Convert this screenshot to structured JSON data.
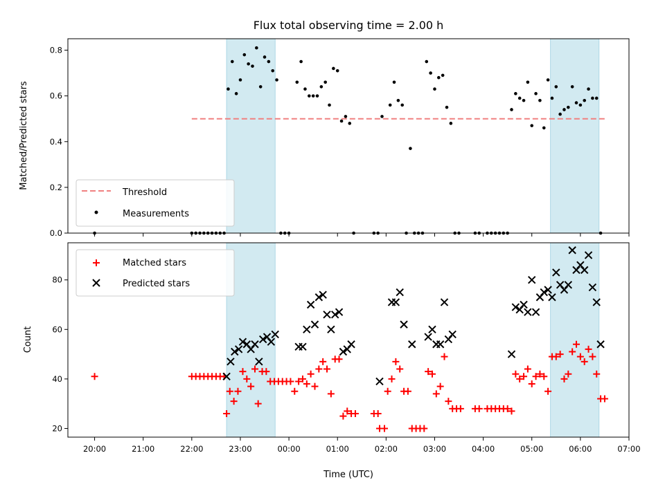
{
  "chart_data": [
    {
      "type": "scatter",
      "title": "Flux total observing time = 2.00 h",
      "ylabel": "Matched/Predicted stars",
      "xlabel": "",
      "xlim": [
        "19:27",
        "07:00"
      ],
      "ylim": [
        0,
        0.85
      ],
      "yticks": [
        "0.0",
        "0.2",
        "0.4",
        "0.6",
        "0.8"
      ],
      "grid": false,
      "legend_position": "lower-left",
      "shaded_intervals": [
        {
          "start": "22:43",
          "end": "23:43"
        },
        {
          "start": "05:23",
          "end": "06:23"
        }
      ],
      "colors": {
        "threshold": "#f08080",
        "measurements": "#000000",
        "shade": "#add8e6"
      },
      "threshold": {
        "name": "Threshold",
        "y": 0.5,
        "x_range": [
          "22:00",
          "06:30"
        ]
      },
      "series": [
        {
          "name": "Measurements",
          "points": [
            [
              "20:00",
              0.0
            ],
            [
              "22:00",
              0.0
            ],
            [
              "22:05",
              0.0
            ],
            [
              "22:10",
              0.0
            ],
            [
              "22:15",
              0.0
            ],
            [
              "22:20",
              0.0
            ],
            [
              "22:25",
              0.0
            ],
            [
              "22:30",
              0.0
            ],
            [
              "22:35",
              0.0
            ],
            [
              "22:40",
              0.0
            ],
            [
              "22:45",
              0.63
            ],
            [
              "22:50",
              0.75
            ],
            [
              "22:55",
              0.61
            ],
            [
              "23:00",
              0.67
            ],
            [
              "23:05",
              0.78
            ],
            [
              "23:10",
              0.74
            ],
            [
              "23:15",
              0.73
            ],
            [
              "23:20",
              0.81
            ],
            [
              "23:25",
              0.64
            ],
            [
              "23:30",
              0.77
            ],
            [
              "23:35",
              0.75
            ],
            [
              "23:40",
              0.71
            ],
            [
              "23:45",
              0.67
            ],
            [
              "23:50",
              0.0
            ],
            [
              "23:55",
              0.0
            ],
            [
              "00:00",
              0.0
            ],
            [
              "00:10",
              0.66
            ],
            [
              "00:15",
              0.75
            ],
            [
              "00:20",
              0.63
            ],
            [
              "00:25",
              0.6
            ],
            [
              "00:30",
              0.6
            ],
            [
              "00:35",
              0.6
            ],
            [
              "00:40",
              0.64
            ],
            [
              "00:45",
              0.66
            ],
            [
              "00:50",
              0.56
            ],
            [
              "00:55",
              0.72
            ],
            [
              "01:00",
              0.71
            ],
            [
              "01:05",
              0.49
            ],
            [
              "01:10",
              0.51
            ],
            [
              "01:15",
              0.48
            ],
            [
              "01:20",
              0.0
            ],
            [
              "01:45",
              0.0
            ],
            [
              "01:50",
              0.0
            ],
            [
              "01:55",
              0.51
            ],
            [
              "02:05",
              0.56
            ],
            [
              "02:10",
              0.66
            ],
            [
              "02:15",
              0.58
            ],
            [
              "02:20",
              0.56
            ],
            [
              "02:25",
              0.0
            ],
            [
              "02:30",
              0.37
            ],
            [
              "02:35",
              0.0
            ],
            [
              "02:40",
              0.0
            ],
            [
              "02:45",
              0.0
            ],
            [
              "02:50",
              0.75
            ],
            [
              "02:55",
              0.7
            ],
            [
              "03:00",
              0.63
            ],
            [
              "03:05",
              0.68
            ],
            [
              "03:10",
              0.69
            ],
            [
              "03:15",
              0.55
            ],
            [
              "03:20",
              0.48
            ],
            [
              "03:25",
              0.0
            ],
            [
              "03:30",
              0.0
            ],
            [
              "03:50",
              0.0
            ],
            [
              "03:55",
              0.0
            ],
            [
              "04:05",
              0.0
            ],
            [
              "04:10",
              0.0
            ],
            [
              "04:15",
              0.0
            ],
            [
              "04:20",
              0.0
            ],
            [
              "04:25",
              0.0
            ],
            [
              "04:30",
              0.0
            ],
            [
              "04:35",
              0.54
            ],
            [
              "04:40",
              0.61
            ],
            [
              "04:45",
              0.59
            ],
            [
              "04:50",
              0.58
            ],
            [
              "04:55",
              0.66
            ],
            [
              "05:00",
              0.47
            ],
            [
              "05:05",
              0.61
            ],
            [
              "05:10",
              0.58
            ],
            [
              "05:15",
              0.46
            ],
            [
              "05:20",
              0.67
            ],
            [
              "05:25",
              0.59
            ],
            [
              "05:30",
              0.64
            ],
            [
              "05:35",
              0.52
            ],
            [
              "05:40",
              0.54
            ],
            [
              "05:45",
              0.55
            ],
            [
              "05:50",
              0.64
            ],
            [
              "05:55",
              0.57
            ],
            [
              "06:00",
              0.56
            ],
            [
              "06:05",
              0.58
            ],
            [
              "06:10",
              0.63
            ],
            [
              "06:15",
              0.59
            ],
            [
              "06:20",
              0.59
            ],
            [
              "06:25",
              0.0
            ]
          ]
        }
      ]
    },
    {
      "type": "scatter",
      "title": "",
      "ylabel": "Count",
      "xlabel": "Time (UTC)",
      "xlim": [
        "19:27",
        "07:00"
      ],
      "ylim": [
        16.5,
        95
      ],
      "yticks": [
        "20",
        "40",
        "60",
        "80"
      ],
      "xticks": [
        "20:00",
        "21:00",
        "22:00",
        "23:00",
        "00:00",
        "01:00",
        "02:00",
        "03:00",
        "04:00",
        "05:00",
        "06:00",
        "07:00"
      ],
      "grid": false,
      "legend_position": "top-left",
      "shaded_intervals": [
        {
          "start": "22:43",
          "end": "23:43"
        },
        {
          "start": "05:23",
          "end": "06:23"
        }
      ],
      "colors": {
        "matched": "#ff0000",
        "predicted": "#000000",
        "shade": "#add8e6"
      },
      "series": [
        {
          "name": "Matched stars",
          "marker": "+",
          "points": [
            [
              "20:00",
              41
            ],
            [
              "22:00",
              41
            ],
            [
              "22:05",
              41
            ],
            [
              "22:10",
              41
            ],
            [
              "22:15",
              41
            ],
            [
              "22:20",
              41
            ],
            [
              "22:25",
              41
            ],
            [
              "22:30",
              41
            ],
            [
              "22:35",
              41
            ],
            [
              "22:40",
              41
            ],
            [
              "22:43",
              26
            ],
            [
              "22:47",
              35
            ],
            [
              "22:52",
              31
            ],
            [
              "22:57",
              35
            ],
            [
              "23:03",
              43
            ],
            [
              "23:08",
              40
            ],
            [
              "23:13",
              37
            ],
            [
              "23:18",
              44
            ],
            [
              "23:22",
              30
            ],
            [
              "23:27",
              43
            ],
            [
              "23:32",
              43
            ],
            [
              "23:37",
              39
            ],
            [
              "23:42",
              39
            ],
            [
              "23:47",
              39
            ],
            [
              "23:52",
              39
            ],
            [
              "23:57",
              39
            ],
            [
              "00:02",
              39
            ],
            [
              "00:07",
              35
            ],
            [
              "00:12",
              39
            ],
            [
              "00:17",
              40
            ],
            [
              "00:22",
              38
            ],
            [
              "00:27",
              42
            ],
            [
              "00:32",
              37
            ],
            [
              "00:37",
              44
            ],
            [
              "00:42",
              47
            ],
            [
              "00:47",
              44
            ],
            [
              "00:52",
              34
            ],
            [
              "00:57",
              48
            ],
            [
              "01:02",
              48
            ],
            [
              "01:07",
              25
            ],
            [
              "01:12",
              27
            ],
            [
              "01:17",
              26
            ],
            [
              "01:22",
              26
            ],
            [
              "01:45",
              26
            ],
            [
              "01:50",
              26
            ],
            [
              "01:52",
              20
            ],
            [
              "01:58",
              20
            ],
            [
              "02:02",
              35
            ],
            [
              "02:07",
              40
            ],
            [
              "02:12",
              47
            ],
            [
              "02:17",
              44
            ],
            [
              "02:22",
              35
            ],
            [
              "02:27",
              35
            ],
            [
              "02:32",
              20
            ],
            [
              "02:37",
              20
            ],
            [
              "02:42",
              20
            ],
            [
              "02:47",
              20
            ],
            [
              "02:52",
              43
            ],
            [
              "02:57",
              42
            ],
            [
              "03:02",
              34
            ],
            [
              "03:07",
              37
            ],
            [
              "03:12",
              49
            ],
            [
              "03:17",
              31
            ],
            [
              "03:22",
              28
            ],
            [
              "03:27",
              28
            ],
            [
              "03:32",
              28
            ],
            [
              "03:50",
              28
            ],
            [
              "03:55",
              28
            ],
            [
              "04:05",
              28
            ],
            [
              "04:10",
              28
            ],
            [
              "04:15",
              28
            ],
            [
              "04:20",
              28
            ],
            [
              "04:25",
              28
            ],
            [
              "04:30",
              28
            ],
            [
              "04:35",
              27
            ],
            [
              "04:40",
              42
            ],
            [
              "04:45",
              40
            ],
            [
              "04:50",
              41
            ],
            [
              "04:55",
              44
            ],
            [
              "05:00",
              38
            ],
            [
              "05:05",
              41
            ],
            [
              "05:10",
              42
            ],
            [
              "05:15",
              41
            ],
            [
              "05:20",
              35
            ],
            [
              "05:25",
              49
            ],
            [
              "05:30",
              49
            ],
            [
              "05:35",
              50
            ],
            [
              "05:40",
              40
            ],
            [
              "05:45",
              42
            ],
            [
              "05:50",
              51
            ],
            [
              "05:55",
              54
            ],
            [
              "06:00",
              49
            ],
            [
              "06:05",
              47
            ],
            [
              "06:10",
              52
            ],
            [
              "06:15",
              49
            ],
            [
              "06:20",
              42
            ],
            [
              "06:25",
              32
            ],
            [
              "06:30",
              32
            ]
          ]
        },
        {
          "name": "Predicted stars",
          "marker": "x",
          "points": [
            [
              "22:43",
              41
            ],
            [
              "22:48",
              47
            ],
            [
              "22:53",
              51
            ],
            [
              "22:58",
              52
            ],
            [
              "23:03",
              55
            ],
            [
              "23:08",
              54
            ],
            [
              "23:13",
              52
            ],
            [
              "23:18",
              54
            ],
            [
              "23:23",
              47
            ],
            [
              "23:28",
              56
            ],
            [
              "23:33",
              57
            ],
            [
              "23:38",
              55
            ],
            [
              "23:43",
              58
            ],
            [
              "00:12",
              53
            ],
            [
              "00:17",
              53
            ],
            [
              "00:22",
              60
            ],
            [
              "00:27",
              70
            ],
            [
              "00:32",
              62
            ],
            [
              "00:37",
              73
            ],
            [
              "00:42",
              74
            ],
            [
              "00:47",
              66
            ],
            [
              "00:52",
              60
            ],
            [
              "00:57",
              66
            ],
            [
              "01:02",
              67
            ],
            [
              "01:07",
              51
            ],
            [
              "01:12",
              52
            ],
            [
              "01:17",
              54
            ],
            [
              "01:52",
              39
            ],
            [
              "02:07",
              71
            ],
            [
              "02:12",
              71
            ],
            [
              "02:17",
              75
            ],
            [
              "02:22",
              62
            ],
            [
              "02:32",
              54
            ],
            [
              "02:52",
              57
            ],
            [
              "02:57",
              60
            ],
            [
              "03:02",
              54
            ],
            [
              "03:07",
              54
            ],
            [
              "03:12",
              71
            ],
            [
              "03:17",
              56
            ],
            [
              "03:22",
              58
            ],
            [
              "04:35",
              50
            ],
            [
              "04:40",
              69
            ],
            [
              "04:45",
              68
            ],
            [
              "04:50",
              70
            ],
            [
              "04:55",
              67
            ],
            [
              "05:00",
              80
            ],
            [
              "05:05",
              67
            ],
            [
              "05:10",
              73
            ],
            [
              "05:15",
              75
            ],
            [
              "05:20",
              76
            ],
            [
              "05:25",
              73
            ],
            [
              "05:30",
              83
            ],
            [
              "05:35",
              78
            ],
            [
              "05:40",
              76
            ],
            [
              "05:45",
              78
            ],
            [
              "05:50",
              92
            ],
            [
              "05:55",
              84
            ],
            [
              "06:00",
              86
            ],
            [
              "06:05",
              84
            ],
            [
              "06:10",
              90
            ],
            [
              "06:15",
              77
            ],
            [
              "06:20",
              71
            ],
            [
              "06:25",
              54
            ]
          ]
        }
      ]
    }
  ]
}
